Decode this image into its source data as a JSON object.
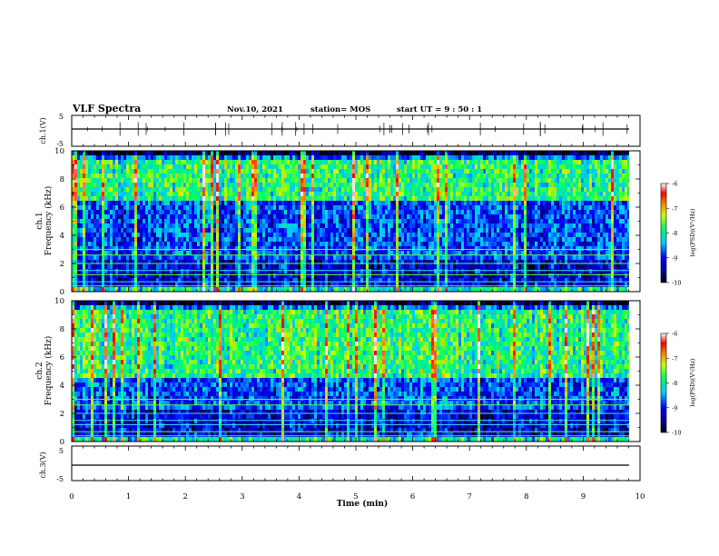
{
  "header": {
    "title": "VLF Spectra",
    "date": "Nov.10, 2021",
    "station": "station= MOS",
    "start": "start  UT  =   9  : 50 : 1"
  },
  "chart_data": [
    {
      "type": "line",
      "ylabel": "ch.1(V)",
      "ylim": [
        -5,
        5
      ],
      "y_ticks": [
        "5",
        "-5"
      ],
      "xlim": [
        0,
        10
      ],
      "baseline": 0
    },
    {
      "type": "heatmap",
      "ylabel_line1": "ch.1",
      "ylabel_line2": "Frequency (kHz)",
      "ylim": [
        0,
        10
      ],
      "y_ticks": [
        "10",
        "8",
        "6",
        "4",
        "2",
        "0"
      ],
      "xlim": [
        0,
        10
      ],
      "colorbar": {
        "label": "log(PSD)(V²/Hz)",
        "range": [
          -10,
          -6
        ],
        "ticks": [
          "-6",
          "-7",
          "-8",
          "-9",
          "-10"
        ]
      }
    },
    {
      "type": "heatmap",
      "ylabel_line1": "ch.2",
      "ylabel_line2": "Frequency (kHz)",
      "ylim": [
        0,
        10
      ],
      "y_ticks": [
        "10",
        "8",
        "6",
        "4",
        "2",
        "0"
      ],
      "xlim": [
        0,
        10
      ],
      "colorbar": {
        "label": "log(PSD)(V²/Hz)",
        "range": [
          -10,
          -6
        ],
        "ticks": [
          "-6",
          "-7",
          "-8",
          "-9",
          "-10"
        ]
      }
    },
    {
      "type": "line",
      "ylabel": "ch.3(V)",
      "ylim": [
        -5,
        5
      ],
      "y_ticks": [
        "5",
        "-5"
      ],
      "xlim": [
        0,
        10
      ],
      "baseline": 0,
      "xlabel": "Time  (min)",
      "x_ticks": [
        "0",
        "1",
        "2",
        "3",
        "4",
        "5",
        "6",
        "7",
        "8",
        "9",
        "10"
      ]
    }
  ]
}
